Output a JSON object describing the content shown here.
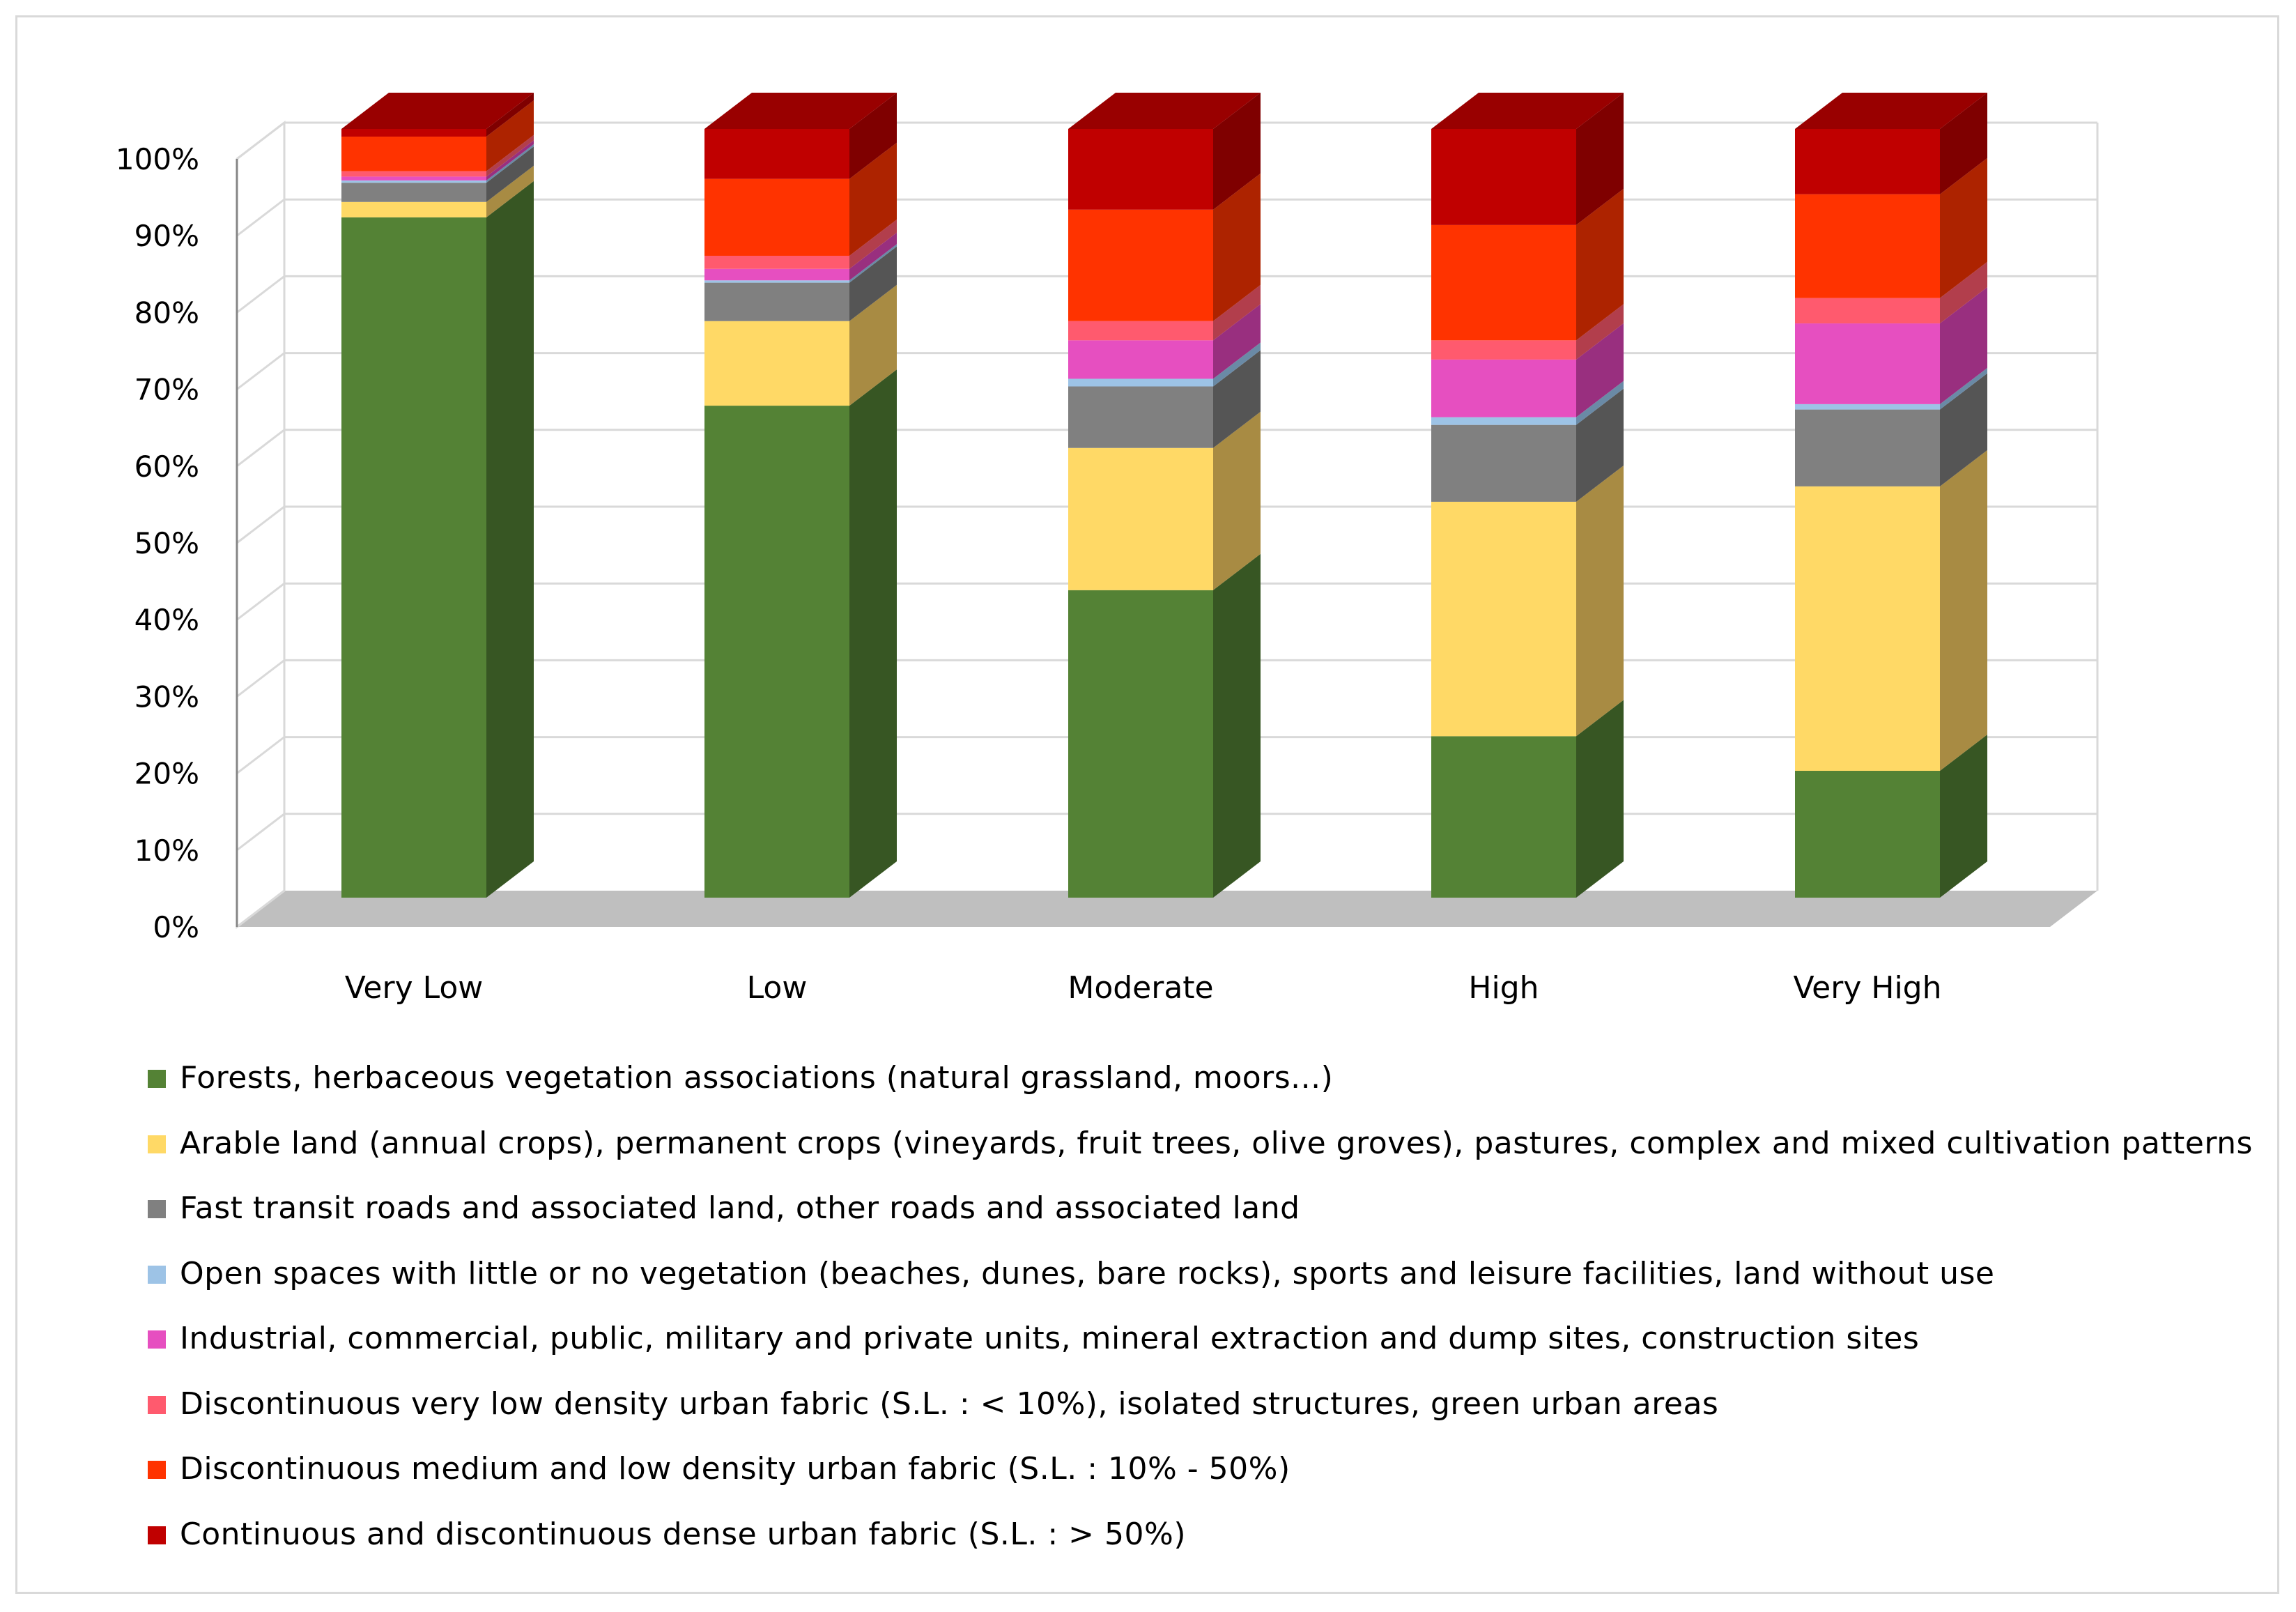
{
  "chart_data": {
    "type": "bar",
    "stacked": true,
    "percent": true,
    "title": "",
    "xlabel": "",
    "ylabel": "",
    "ylim": [
      0,
      100
    ],
    "yticks": [
      "0%",
      "10%",
      "20%",
      "30%",
      "40%",
      "50%",
      "60%",
      "70%",
      "80%",
      "90%",
      "100%"
    ],
    "categories": [
      "Very Low",
      "Low",
      "Moderate",
      "High",
      "Very High"
    ],
    "series": [
      {
        "name": "Forests, herbaceous vegetation associations (natural grassland, moors...)",
        "color": "#548235",
        "side": "#375623",
        "values": [
          88.5,
          64,
          40,
          21,
          16.5
        ]
      },
      {
        "name": "Arable land (annual crops), permanent crops (vineyards, fruit trees, olive groves), pastures, complex and mixed cultivation patterns",
        "color": "#ffd966",
        "side": "#a88b43",
        "values": [
          2,
          11,
          18.5,
          30.5,
          37
        ]
      },
      {
        "name": "Fast transit roads and associated land, other roads and associated land",
        "color": "#808080",
        "side": "#555555",
        "values": [
          2.5,
          5,
          8,
          10,
          10
        ]
      },
      {
        "name": "Open spaces with little or no vegetation (beaches, dunes, bare rocks), sports and leisure facilities, land without use",
        "color": "#9dc3e6",
        "side": "#6a8aa6",
        "values": [
          0.3,
          0.3,
          1,
          1,
          0.7
        ]
      },
      {
        "name": "Industrial, commercial, public, military and private units, mineral extraction and dump sites, construction sites",
        "color": "#e64fc0",
        "side": "#992f7f",
        "values": [
          0.5,
          1.5,
          5,
          7.5,
          10.5
        ]
      },
      {
        "name": "Discontinuous very low density urban fabric (S.L. : < 10%), isolated structures, green urban areas",
        "color": "#ff5a6e",
        "side": "#b23e4c",
        "values": [
          0.7,
          1.7,
          2.5,
          2.5,
          3.3
        ]
      },
      {
        "name": "Discontinuous medium and low density urban fabric (S.L. : 10% - 50%)",
        "color": "#ff3300",
        "side": "#ad2300",
        "values": [
          4.5,
          10,
          14.5,
          15,
          13.5
        ]
      },
      {
        "name": "Continuous and discontinuous dense urban fabric (S.L. : > 50%)",
        "color": "#c00000",
        "side": "#7f0000",
        "values": [
          1,
          6.5,
          10.5,
          12.5,
          8.5
        ]
      }
    ],
    "legend_position": "bottom",
    "grid": true,
    "colors": {
      "grid": "#d9d9d9",
      "floor": "#bfbfbf",
      "wall_edge": "#d9d9d9",
      "axis_text": "#000000"
    }
  }
}
